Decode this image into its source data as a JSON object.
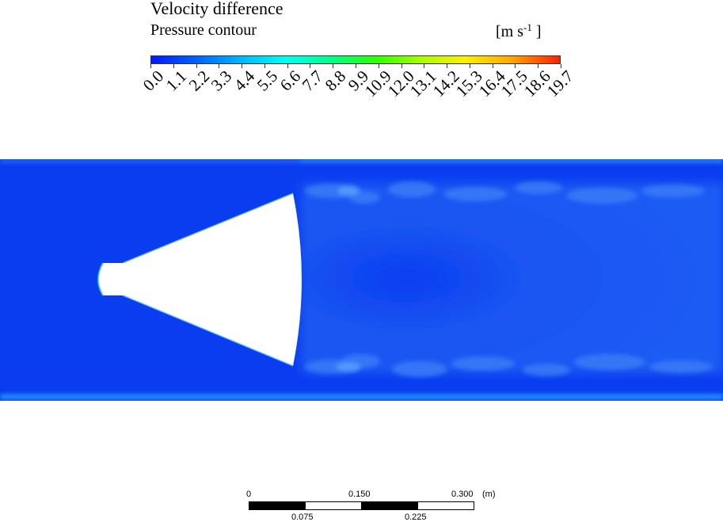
{
  "legend": {
    "title": "Velocity difference",
    "subtitle": "Pressure contour",
    "unit_prefix": "[m s",
    "unit_exponent": "-1",
    "unit_suffix": " ]",
    "ticks": [
      "0.0",
      "1.1",
      "2.2",
      "3.3",
      "4.4",
      "5.5",
      "6.6",
      "7.7",
      "8.8",
      "9.9",
      "10.9",
      "12.0",
      "13.1",
      "14.2",
      "15.3",
      "16.4",
      "17.5",
      "18.6",
      "19.7"
    ],
    "colors": [
      "#0019ff",
      "#0062ff",
      "#00b7ff",
      "#00fff1",
      "#00ff8a",
      "#2fff00",
      "#a8ff00",
      "#fff000",
      "#ffa600",
      "#ff1e00"
    ]
  },
  "field": {
    "background_color": "#0a3df0",
    "wake_color": "#1f5cf5",
    "edge_highlight_color": "#33c8ff",
    "body_color": "#ffffff"
  },
  "scalebar": {
    "top_labels": [
      "0",
      "0.150",
      "0.300"
    ],
    "unit": "(m)",
    "bottom_labels": [
      "0.075",
      "0.225"
    ]
  }
}
